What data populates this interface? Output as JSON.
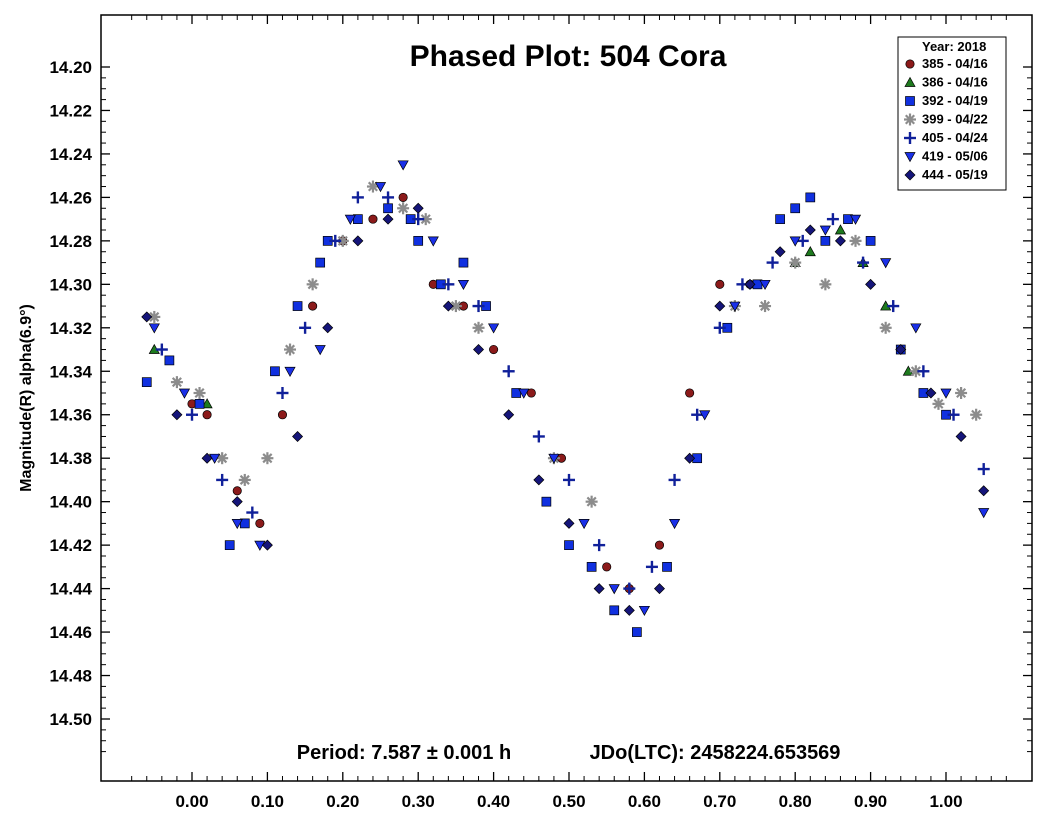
{
  "chart_data": {
    "type": "scatter",
    "title": "Phased Plot: 504 Cora",
    "ylabel": "Magnitude(R) alpha(6.9°)",
    "xlabel": "",
    "period_text": "Period: 7.587 ± 0.001 h",
    "epoch_text": "JDo(LTC): 2458224.653569",
    "legend_title": "Year: 2018",
    "xlim": [
      -0.12,
      1.12
    ],
    "ylim": [
      14.18,
      14.53
    ],
    "y_inverted": true,
    "x_ticks": [
      "0.00",
      "0.10",
      "0.20",
      "0.30",
      "0.40",
      "0.50",
      "0.60",
      "0.70",
      "0.80",
      "0.90",
      "1.00"
    ],
    "y_ticks": [
      "14.20",
      "14.22",
      "14.24",
      "14.26",
      "14.28",
      "14.30",
      "14.32",
      "14.34",
      "14.36",
      "14.38",
      "14.40",
      "14.42",
      "14.44",
      "14.46",
      "14.48",
      "14.50"
    ],
    "legend_position": "top-right",
    "grid": false,
    "series": [
      {
        "name": "385 - 04/16",
        "marker": "circle",
        "color": "#8b1a1a",
        "x": [
          0.0,
          0.02,
          0.06,
          0.09,
          0.12,
          0.16,
          0.2,
          0.24,
          0.28,
          0.3,
          0.32,
          0.36,
          0.4,
          0.45,
          0.49,
          0.55,
          0.58,
          0.62,
          0.66,
          0.7,
          0.74
        ],
        "y": [
          14.355,
          14.36,
          14.395,
          14.41,
          14.36,
          14.31,
          14.28,
          14.27,
          14.26,
          14.28,
          14.3,
          14.31,
          14.33,
          14.35,
          14.38,
          14.43,
          14.44,
          14.42,
          14.35,
          14.3,
          14.3
        ]
      },
      {
        "name": "386 - 04/16",
        "marker": "triangle-up",
        "color": "#1e7a1e",
        "x": [
          -0.05,
          0.02,
          0.8,
          0.82,
          0.86,
          0.89,
          0.92,
          0.95
        ],
        "y": [
          14.33,
          14.355,
          14.29,
          14.285,
          14.275,
          14.29,
          14.31,
          14.34
        ]
      },
      {
        "name": "392 - 04/19",
        "marker": "square",
        "color": "#1030e0",
        "x": [
          -0.06,
          -0.03,
          0.01,
          0.05,
          0.07,
          0.11,
          0.14,
          0.17,
          0.18,
          0.22,
          0.26,
          0.29,
          0.3,
          0.33,
          0.36,
          0.39,
          0.43,
          0.47,
          0.5,
          0.53,
          0.56,
          0.59,
          0.63,
          0.67,
          0.71,
          0.75,
          0.78,
          0.8,
          0.82,
          0.84,
          0.87,
          0.9,
          0.94,
          0.97,
          1.0
        ],
        "y": [
          14.345,
          14.335,
          14.355,
          14.42,
          14.41,
          14.34,
          14.31,
          14.29,
          14.28,
          14.27,
          14.265,
          14.27,
          14.28,
          14.3,
          14.29,
          14.31,
          14.35,
          14.4,
          14.42,
          14.43,
          14.45,
          14.46,
          14.43,
          14.38,
          14.32,
          14.3,
          14.27,
          14.265,
          14.26,
          14.28,
          14.27,
          14.28,
          14.33,
          14.35,
          14.36
        ]
      },
      {
        "name": "399 - 04/22",
        "marker": "asterisk",
        "color": "#8c8c8c",
        "x": [
          -0.05,
          -0.02,
          0.01,
          0.04,
          0.07,
          0.1,
          0.13,
          0.16,
          0.2,
          0.24,
          0.28,
          0.31,
          0.35,
          0.38,
          0.48,
          0.53,
          0.72,
          0.76,
          0.8,
          0.84,
          0.88,
          0.92,
          0.96,
          0.99,
          1.02,
          1.04
        ],
        "y": [
          14.315,
          14.345,
          14.35,
          14.38,
          14.39,
          14.38,
          14.33,
          14.3,
          14.28,
          14.255,
          14.265,
          14.27,
          14.31,
          14.32,
          14.38,
          14.4,
          14.31,
          14.31,
          14.29,
          14.3,
          14.28,
          14.32,
          14.34,
          14.355,
          14.35,
          14.36
        ]
      },
      {
        "name": "405 - 04/24",
        "marker": "plus",
        "color": "#10209a",
        "x": [
          -0.04,
          0.0,
          0.04,
          0.08,
          0.12,
          0.15,
          0.19,
          0.22,
          0.26,
          0.3,
          0.34,
          0.38,
          0.42,
          0.46,
          0.5,
          0.54,
          0.58,
          0.61,
          0.64,
          0.67,
          0.7,
          0.73,
          0.77,
          0.81,
          0.85,
          0.89,
          0.93,
          0.97,
          1.01,
          1.05
        ],
        "y": [
          14.33,
          14.36,
          14.39,
          14.405,
          14.35,
          14.32,
          14.28,
          14.26,
          14.26,
          14.27,
          14.3,
          14.31,
          14.34,
          14.37,
          14.39,
          14.42,
          14.44,
          14.43,
          14.39,
          14.36,
          14.32,
          14.3,
          14.29,
          14.28,
          14.27,
          14.29,
          14.31,
          14.34,
          14.36,
          14.385
        ]
      },
      {
        "name": "419 - 05/06",
        "marker": "triangle-down",
        "color": "#1a30e8",
        "x": [
          -0.05,
          -0.01,
          0.03,
          0.06,
          0.09,
          0.13,
          0.17,
          0.21,
          0.25,
          0.28,
          0.32,
          0.36,
          0.4,
          0.44,
          0.48,
          0.52,
          0.56,
          0.6,
          0.64,
          0.68,
          0.72,
          0.76,
          0.8,
          0.84,
          0.88,
          0.92,
          0.96,
          1.0,
          1.05
        ],
        "y": [
          14.32,
          14.35,
          14.38,
          14.41,
          14.42,
          14.34,
          14.33,
          14.27,
          14.255,
          14.245,
          14.28,
          14.3,
          14.32,
          14.35,
          14.38,
          14.41,
          14.44,
          14.45,
          14.41,
          14.36,
          14.31,
          14.3,
          14.28,
          14.275,
          14.27,
          14.29,
          14.32,
          14.35,
          14.405
        ]
      },
      {
        "name": "444 - 05/19",
        "marker": "diamond",
        "color": "#15157a",
        "x": [
          -0.06,
          -0.02,
          0.02,
          0.06,
          0.1,
          0.14,
          0.18,
          0.22,
          0.26,
          0.3,
          0.34,
          0.38,
          0.42,
          0.46,
          0.5,
          0.54,
          0.58,
          0.62,
          0.66,
          0.7,
          0.74,
          0.78,
          0.82,
          0.86,
          0.9,
          0.94,
          0.98,
          1.02,
          1.05
        ],
        "y": [
          14.315,
          14.36,
          14.38,
          14.4,
          14.42,
          14.37,
          14.32,
          14.28,
          14.27,
          14.265,
          14.31,
          14.33,
          14.36,
          14.39,
          14.41,
          14.44,
          14.45,
          14.44,
          14.38,
          14.31,
          14.3,
          14.285,
          14.275,
          14.28,
          14.3,
          14.33,
          14.35,
          14.37,
          14.395
        ]
      }
    ]
  }
}
